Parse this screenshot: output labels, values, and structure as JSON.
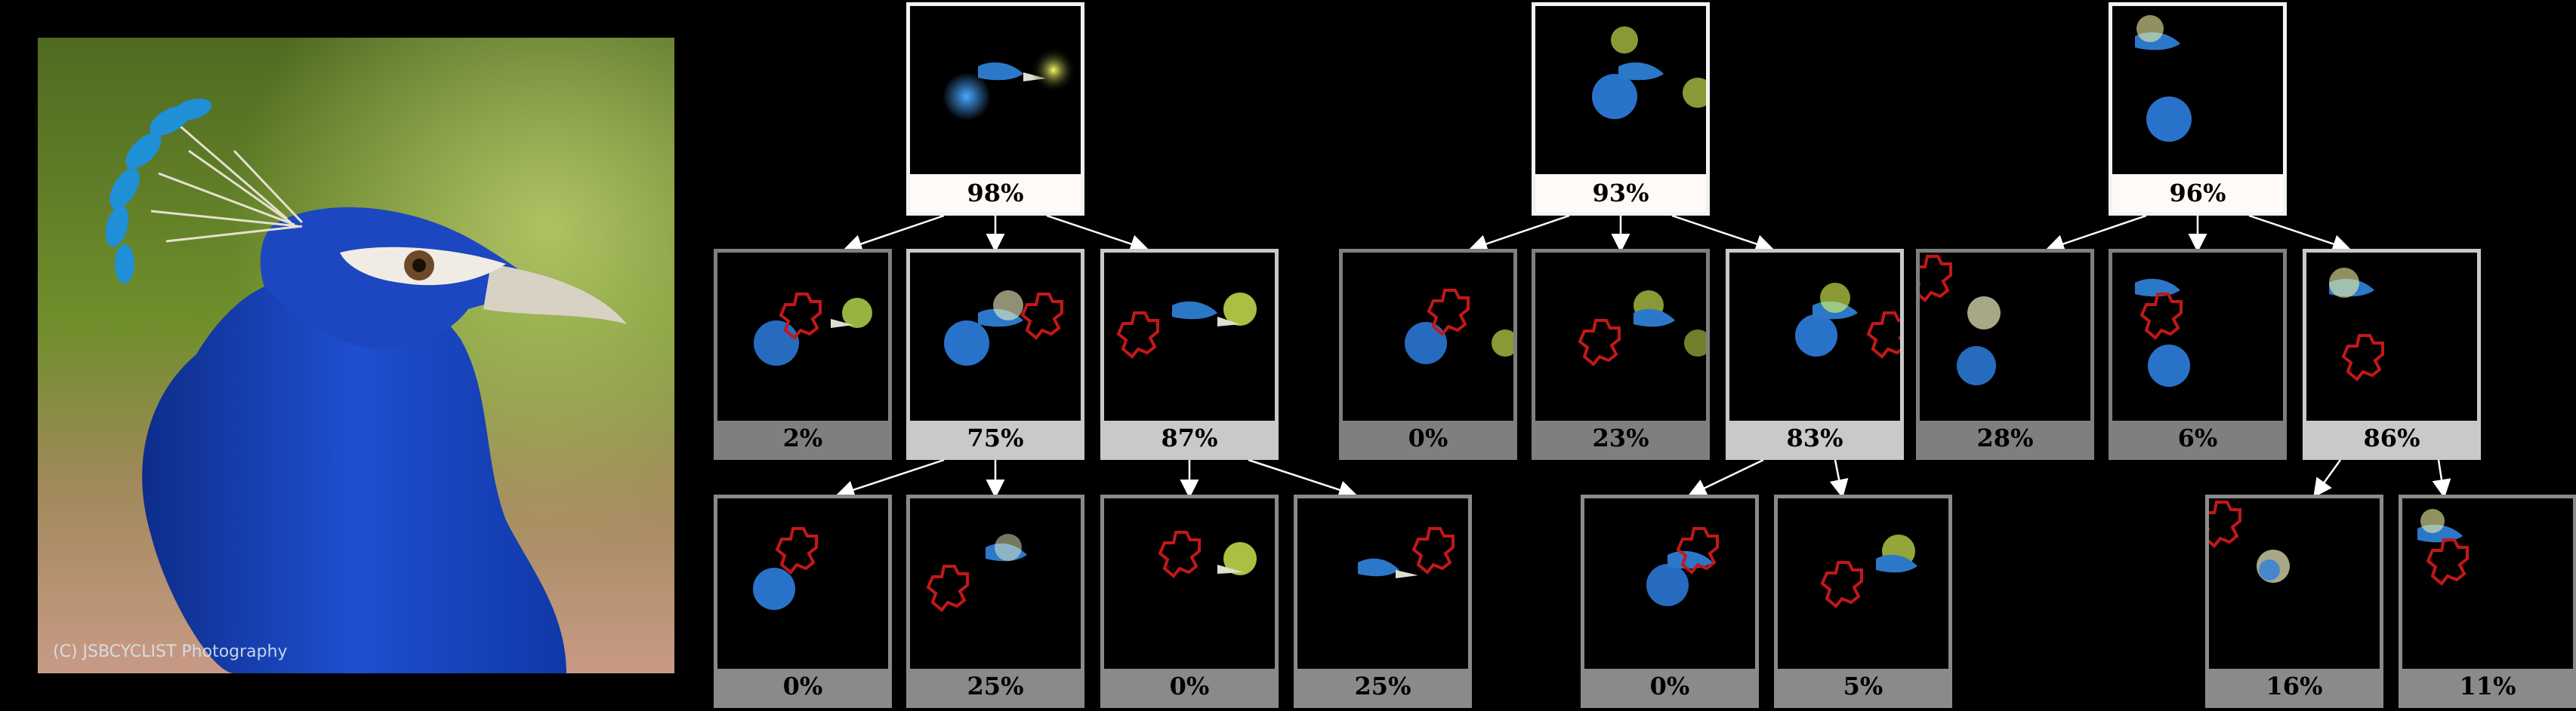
{
  "image": {
    "subject_icon": "peacock-photo",
    "watermark": "(C) JSBCYCLIST Photography"
  },
  "colors": {
    "background": "#000000",
    "occluder_outline": "#c21818",
    "root_label_bg": "#fffaf7",
    "chosen_label_bg": "#c9c9c9",
    "other_label_bg": "#7f7f7f"
  },
  "trees": [
    {
      "root": {
        "label": "98%"
      },
      "level1": [
        {
          "label": "2%"
        },
        {
          "label": "75%"
        },
        {
          "label": "87%"
        }
      ],
      "level2": [
        {
          "label": "0%"
        },
        {
          "label": "25%"
        },
        {
          "label": "0%"
        },
        {
          "label": "25%"
        }
      ]
    },
    {
      "root": {
        "label": "93%"
      },
      "level1": [
        {
          "label": "0%"
        },
        {
          "label": "23%"
        },
        {
          "label": "83%"
        }
      ],
      "level2": [
        {
          "label": "0%"
        },
        {
          "label": "5%"
        }
      ]
    },
    {
      "root": {
        "label": "96%"
      },
      "level1": [
        {
          "label": "28%"
        },
        {
          "label": "6%"
        },
        {
          "label": "86%"
        }
      ],
      "level2": [
        {
          "label": "16%"
        },
        {
          "label": "11%"
        }
      ]
    }
  ]
}
